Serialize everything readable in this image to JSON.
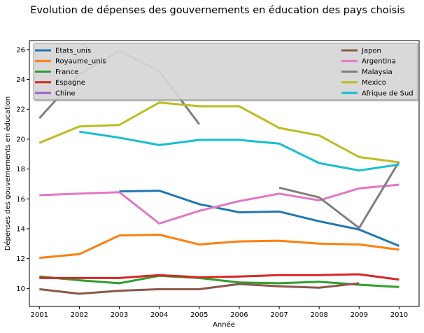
{
  "chart_data": {
    "type": "line",
    "title": "Evolution de dépenses des gouvernements en éducation des pays choisis",
    "xlabel": "Année",
    "ylabel": "Dépenses des gouvernements en éducation",
    "x": [
      2001,
      2002,
      2003,
      2004,
      2005,
      2006,
      2007,
      2008,
      2009,
      2010
    ],
    "xlim": [
      2000.75,
      2010.5
    ],
    "ylim": [
      8.8,
      26.6
    ],
    "yticks": [
      10,
      12,
      14,
      16,
      18,
      20,
      22,
      24,
      26
    ],
    "grid": false,
    "legend_placement": "top, spanning full width",
    "series": [
      {
        "name": "Etats_unis",
        "color": "#1f77b4",
        "values": [
          null,
          null,
          16.5,
          16.55,
          15.65,
          15.1,
          15.15,
          14.5,
          13.95,
          12.85
        ]
      },
      {
        "name": "Royaume_unis",
        "color": "#ff7f0e",
        "values": [
          12.05,
          12.3,
          13.55,
          13.6,
          12.95,
          13.15,
          13.2,
          13.0,
          12.95,
          12.6
        ]
      },
      {
        "name": "France",
        "color": "#2ca02c",
        "values": [
          10.8,
          10.55,
          10.35,
          10.85,
          10.7,
          10.4,
          10.35,
          10.45,
          10.25,
          10.1
        ]
      },
      {
        "name": "Espagne",
        "color": "#d62728",
        "values": [
          10.7,
          10.7,
          10.7,
          10.9,
          10.75,
          10.8,
          10.9,
          10.9,
          10.95,
          10.6
        ]
      },
      {
        "name": "Chine",
        "color": "#9467bd",
        "values": [
          null,
          null,
          null,
          null,
          null,
          null,
          null,
          null,
          null,
          null
        ]
      },
      {
        "name": "Japon",
        "color": "#8c564b",
        "values": [
          9.95,
          9.65,
          9.85,
          9.95,
          9.95,
          10.3,
          10.15,
          10.05,
          10.35,
          null
        ]
      },
      {
        "name": "Argentina",
        "color": "#e377c2",
        "values": [
          16.25,
          16.35,
          16.45,
          14.35,
          15.2,
          15.85,
          16.35,
          15.9,
          16.7,
          16.95
        ]
      },
      {
        "name": "Malaysia",
        "color": "#7f7f7f",
        "values": [
          21.4,
          24.35,
          25.9,
          24.55,
          21.0,
          null,
          16.75,
          16.1,
          14.05,
          18.5
        ]
      },
      {
        "name": "Mexico",
        "color": "#bcbd22",
        "values": [
          19.75,
          20.85,
          20.95,
          22.45,
          22.2,
          22.2,
          20.75,
          20.25,
          18.8,
          18.45
        ]
      },
      {
        "name": "Afrique de Sud",
        "color": "#17becf",
        "values": [
          null,
          20.5,
          20.1,
          19.6,
          19.95,
          19.95,
          19.7,
          18.4,
          17.9,
          18.3
        ]
      }
    ]
  }
}
